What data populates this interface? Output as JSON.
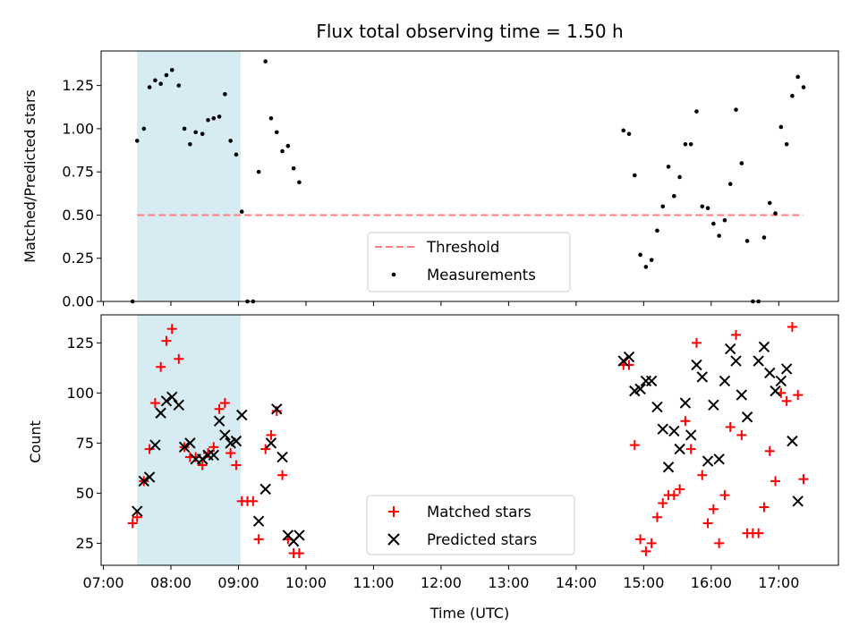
{
  "chart_data": [
    {
      "type": "scatter",
      "title": "Flux total observing time = 1.50 h",
      "xlabel": "",
      "ylabel": "Matched/Predicted stars",
      "ylim": [
        0,
        1.45
      ],
      "yticks": [
        "0.00",
        "0.25",
        "0.50",
        "0.75",
        "1.00",
        "1.25"
      ],
      "xlim": [
        "06:58",
        "17:53"
      ],
      "highlight_span": [
        "07:30",
        "09:02"
      ],
      "highlight_color": "#add8e6",
      "threshold": 0.5,
      "threshold_range": [
        "07:30",
        "17:22"
      ],
      "legend_position": "lower center",
      "series": [
        {
          "name": "Threshold",
          "kind": "dashed-line",
          "color": "#ff7f7f"
        },
        {
          "name": "Measurements",
          "kind": "points",
          "color": "#000000",
          "points": [
            [
              "07:26",
              0.0
            ],
            [
              "07:30",
              0.93
            ],
            [
              "07:36",
              1.0
            ],
            [
              "07:41",
              1.24
            ],
            [
              "07:46",
              1.28
            ],
            [
              "07:51",
              1.26
            ],
            [
              "07:56",
              1.31
            ],
            [
              "08:01",
              1.34
            ],
            [
              "08:07",
              1.25
            ],
            [
              "08:12",
              1.0
            ],
            [
              "08:17",
              0.91
            ],
            [
              "08:22",
              0.98
            ],
            [
              "08:28",
              0.97
            ],
            [
              "08:33",
              1.05
            ],
            [
              "08:38",
              1.06
            ],
            [
              "08:43",
              1.07
            ],
            [
              "08:48",
              1.2
            ],
            [
              "08:53",
              0.93
            ],
            [
              "08:58",
              0.85
            ],
            [
              "09:03",
              0.52
            ],
            [
              "09:08",
              0.0
            ],
            [
              "09:13",
              0.0
            ],
            [
              "09:18",
              0.75
            ],
            [
              "09:24",
              1.39
            ],
            [
              "09:29",
              1.06
            ],
            [
              "09:34",
              0.98
            ],
            [
              "09:39",
              0.87
            ],
            [
              "09:44",
              0.9
            ],
            [
              "09:49",
              0.77
            ],
            [
              "09:54",
              0.69
            ],
            [
              "14:42",
              0.99
            ],
            [
              "14:47",
              0.97
            ],
            [
              "14:52",
              0.73
            ],
            [
              "14:57",
              0.27
            ],
            [
              "15:02",
              0.2
            ],
            [
              "15:07",
              0.24
            ],
            [
              "15:12",
              0.41
            ],
            [
              "15:17",
              0.55
            ],
            [
              "15:22",
              0.78
            ],
            [
              "15:27",
              0.61
            ],
            [
              "15:32",
              0.72
            ],
            [
              "15:37",
              0.91
            ],
            [
              "15:42",
              0.91
            ],
            [
              "15:47",
              1.1
            ],
            [
              "15:52",
              0.55
            ],
            [
              "15:57",
              0.54
            ],
            [
              "16:02",
              0.45
            ],
            [
              "16:07",
              0.38
            ],
            [
              "16:12",
              0.47
            ],
            [
              "16:17",
              0.68
            ],
            [
              "16:22",
              1.11
            ],
            [
              "16:27",
              0.8
            ],
            [
              "16:32",
              0.35
            ],
            [
              "16:37",
              0.0
            ],
            [
              "16:42",
              0.0
            ],
            [
              "16:47",
              0.37
            ],
            [
              "16:52",
              0.57
            ],
            [
              "16:57",
              0.51
            ],
            [
              "17:02",
              1.01
            ],
            [
              "17:07",
              0.91
            ],
            [
              "17:12",
              1.19
            ],
            [
              "17:17",
              1.3
            ],
            [
              "17:22",
              1.24
            ]
          ]
        }
      ]
    },
    {
      "type": "scatter",
      "title": "",
      "xlabel": "Time (UTC)",
      "ylabel": "Count",
      "ylim": [
        14,
        139
      ],
      "yticks": [
        "25",
        "50",
        "75",
        "100",
        "125"
      ],
      "xticks": [
        "07:00",
        "08:00",
        "09:00",
        "10:00",
        "11:00",
        "12:00",
        "13:00",
        "14:00",
        "15:00",
        "16:00",
        "17:00"
      ],
      "xlim": [
        "06:58",
        "17:53"
      ],
      "highlight_span": [
        "07:30",
        "09:02"
      ],
      "highlight_color": "#add8e6",
      "legend_position": "lower center",
      "series": [
        {
          "name": "Matched stars",
          "marker": "+",
          "color": "#ff0000",
          "points": [
            [
              "07:26",
              35
            ],
            [
              "07:30",
              38
            ],
            [
              "07:36",
              56
            ],
            [
              "07:41",
              72
            ],
            [
              "07:46",
              95
            ],
            [
              "07:51",
              113
            ],
            [
              "07:56",
              126
            ],
            [
              "08:01",
              132
            ],
            [
              "08:07",
              117
            ],
            [
              "08:12",
              73
            ],
            [
              "08:17",
              68
            ],
            [
              "08:22",
              68
            ],
            [
              "08:28",
              64
            ],
            [
              "08:33",
              70
            ],
            [
              "08:38",
              73
            ],
            [
              "08:43",
              92
            ],
            [
              "08:48",
              95
            ],
            [
              "08:53",
              70
            ],
            [
              "08:58",
              64
            ],
            [
              "09:03",
              46
            ],
            [
              "09:08",
              46
            ],
            [
              "09:13",
              46
            ],
            [
              "09:18",
              27
            ],
            [
              "09:24",
              72
            ],
            [
              "09:29",
              79
            ],
            [
              "09:34",
              91
            ],
            [
              "09:39",
              59
            ],
            [
              "09:44",
              27
            ],
            [
              "09:49",
              20
            ],
            [
              "09:54",
              20
            ],
            [
              "14:42",
              114
            ],
            [
              "14:47",
              114
            ],
            [
              "14:52",
              74
            ],
            [
              "14:57",
              27
            ],
            [
              "15:02",
              21
            ],
            [
              "15:07",
              25
            ],
            [
              "15:12",
              38
            ],
            [
              "15:17",
              45
            ],
            [
              "15:22",
              49
            ],
            [
              "15:27",
              49
            ],
            [
              "15:32",
              52
            ],
            [
              "15:37",
              86
            ],
            [
              "15:42",
              72
            ],
            [
              "15:47",
              125
            ],
            [
              "15:52",
              59
            ],
            [
              "15:57",
              35
            ],
            [
              "16:02",
              42
            ],
            [
              "16:07",
              25
            ],
            [
              "16:12",
              49
            ],
            [
              "16:17",
              83
            ],
            [
              "16:22",
              129
            ],
            [
              "16:27",
              79
            ],
            [
              "16:32",
              30
            ],
            [
              "16:37",
              30
            ],
            [
              "16:42",
              30
            ],
            [
              "16:47",
              43
            ],
            [
              "16:52",
              71
            ],
            [
              "16:57",
              56
            ],
            [
              "17:02",
              100
            ],
            [
              "17:07",
              96
            ],
            [
              "17:12",
              133
            ],
            [
              "17:17",
              99
            ],
            [
              "17:22",
              57
            ]
          ]
        },
        {
          "name": "Predicted stars",
          "marker": "x",
          "color": "#000000",
          "points": [
            [
              "07:30",
              41
            ],
            [
              "07:36",
              56
            ],
            [
              "07:41",
              58
            ],
            [
              "07:46",
              74
            ],
            [
              "07:51",
              90
            ],
            [
              "07:56",
              96
            ],
            [
              "08:01",
              98
            ],
            [
              "08:07",
              94
            ],
            [
              "08:12",
              73
            ],
            [
              "08:17",
              75
            ],
            [
              "08:22",
              67
            ],
            [
              "08:28",
              67
            ],
            [
              "08:33",
              69
            ],
            [
              "08:38",
              69
            ],
            [
              "08:43",
              86
            ],
            [
              "08:48",
              79
            ],
            [
              "08:53",
              75
            ],
            [
              "08:58",
              76
            ],
            [
              "09:03",
              89
            ],
            [
              "09:18",
              36
            ],
            [
              "09:24",
              52
            ],
            [
              "09:29",
              75
            ],
            [
              "09:34",
              92
            ],
            [
              "09:39",
              68
            ],
            [
              "09:44",
              29
            ],
            [
              "09:49",
              26
            ],
            [
              "09:54",
              29
            ],
            [
              "14:42",
              116
            ],
            [
              "14:47",
              118
            ],
            [
              "14:52",
              101
            ],
            [
              "14:57",
              102
            ],
            [
              "15:02",
              106
            ],
            [
              "15:07",
              106
            ],
            [
              "15:12",
              93
            ],
            [
              "15:17",
              82
            ],
            [
              "15:22",
              63
            ],
            [
              "15:27",
              81
            ],
            [
              "15:32",
              72
            ],
            [
              "15:37",
              95
            ],
            [
              "15:42",
              79
            ],
            [
              "15:47",
              114
            ],
            [
              "15:52",
              108
            ],
            [
              "15:57",
              66
            ],
            [
              "16:02",
              94
            ],
            [
              "16:07",
              67
            ],
            [
              "16:12",
              106
            ],
            [
              "16:17",
              122
            ],
            [
              "16:22",
              116
            ],
            [
              "16:27",
              99
            ],
            [
              "16:32",
              88
            ],
            [
              "16:42",
              116
            ],
            [
              "16:47",
              123
            ],
            [
              "16:52",
              110
            ],
            [
              "16:57",
              101
            ],
            [
              "17:02",
              106
            ],
            [
              "17:07",
              112
            ],
            [
              "17:12",
              76
            ],
            [
              "17:17",
              46
            ]
          ]
        }
      ]
    }
  ]
}
